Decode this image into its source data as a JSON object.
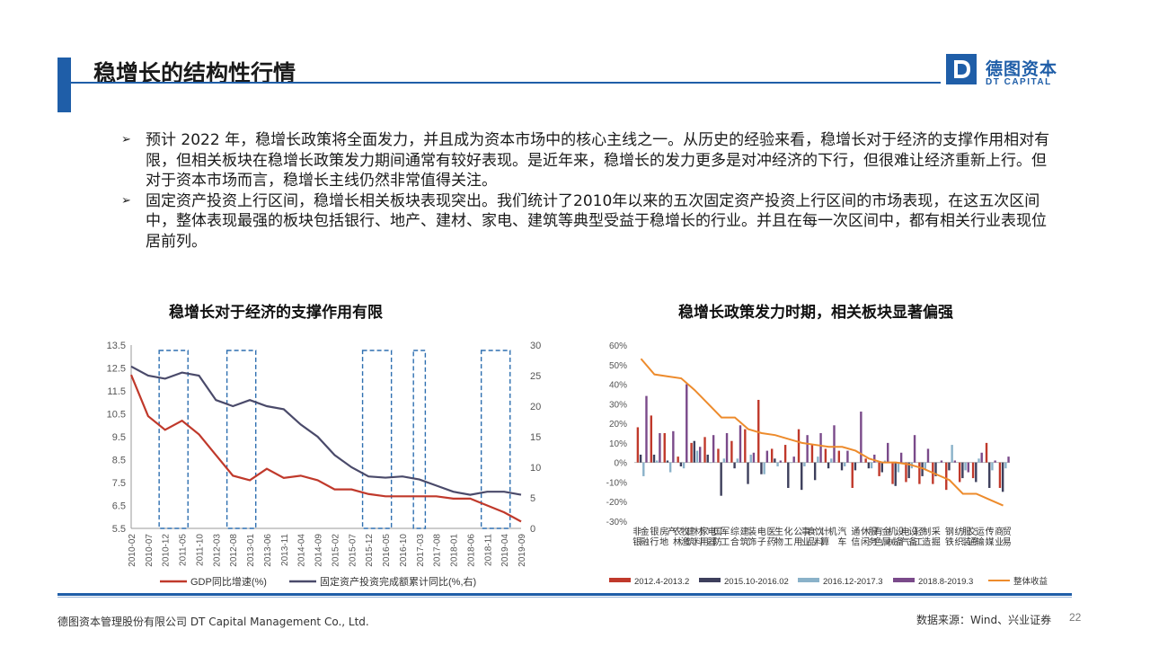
{
  "header": {
    "title": "稳增长的结构性行情",
    "logo_cn": "德图资本",
    "logo_en": "DT CAPITAL",
    "logo_letter": "D"
  },
  "bullets": [
    "预计 2022 年，稳增长政策将全面发力，并且成为资本市场中的核心主线之一。从历史的经验来看，稳增长对于经济的支撑作用相对有限，但相关板块在稳增长政策发力期间通常有较好表现。是近年来，稳增长的发力更多是对冲经济的下行，但很难让经济重新上行。但对于资本市场而言，稳增长主线仍然非常值得关注。",
    "固定资产投资上行区间，稳增长相关板块表现突出。我们统计了2010年以来的五次固定资产投资上行区间的市场表现，在这五次区间中，整体表现最强的板块包括银行、地产、建材、家电、建筑等典型受益于稳增长的行业。并且在每一次区间中，都有相关行业表现位居前列。"
  ],
  "bullet_marker": "➢",
  "footer": {
    "company": "德图资本管理股份有限公司  DT Capital Management Co., Ltd.",
    "source": "数据来源：Wind、兴业证券",
    "page": "22"
  },
  "colors": {
    "brand": "#1f5ea8",
    "gdp": "#c0392b",
    "fai": "#4a4a6a",
    "s1": "#c0392b",
    "s2": "#3d3f5c",
    "s3": "#8ab2c9",
    "s4": "#7a4a8a",
    "s5": "#ed8b2c"
  },
  "chart_data": [
    {
      "type": "line",
      "title": "稳增长对于经济的支撑作用有限",
      "x_labels": [
        "2010-02",
        "2010-07",
        "2010-12",
        "2011-05",
        "2011-10",
        "2012-03",
        "2012-08",
        "2013-01",
        "2013-06",
        "2013-11",
        "2014-04",
        "2014-09",
        "2015-02",
        "2015-07",
        "2015-12",
        "2016-05",
        "2016-10",
        "2017-03",
        "2017-08",
        "2018-01",
        "2018-06",
        "2018-11",
        "2019-04",
        "2019-09"
      ],
      "y_left_ticks": [
        "13.5",
        "12.5",
        "11.5",
        "10.5",
        "9.5",
        "8.5",
        "7.5",
        "6.5",
        "5.5"
      ],
      "y_left_range": [
        5.5,
        13.5
      ],
      "y_right_ticks": [
        "30",
        "25",
        "20",
        "15",
        "10",
        "5",
        "0"
      ],
      "y_right_range": [
        0,
        30
      ],
      "series": [
        {
          "name": "GDP同比增速(%)",
          "axis": "left",
          "values": [
            12.2,
            10.4,
            9.8,
            10.2,
            9.6,
            8.7,
            7.8,
            7.6,
            8.1,
            7.7,
            7.8,
            7.6,
            7.2,
            7.2,
            7.0,
            6.9,
            6.9,
            6.9,
            6.9,
            6.8,
            6.8,
            6.5,
            6.2,
            5.8
          ]
        },
        {
          "name": "固定资产投资完成额累计同比(%,右)",
          "axis": "right",
          "values": [
            26.5,
            25,
            24.5,
            25.5,
            25,
            21,
            20,
            21,
            20,
            19.5,
            17,
            15,
            12,
            10,
            8.5,
            8.3,
            8.5,
            8,
            7,
            6,
            5.5,
            6,
            6,
            5.5
          ]
        }
      ],
      "highlight_ranges": [
        [
          2,
          3
        ],
        [
          6,
          7
        ],
        [
          14,
          15
        ],
        [
          17,
          17
        ],
        [
          21,
          22
        ]
      ]
    },
    {
      "type": "bar",
      "title": "稳增长政策发力时期，相关板块显著偏强",
      "categories": [
        "非银金融",
        "银行",
        "房地产",
        "农林牧渔",
        "建筑材料",
        "家用电器",
        "国防军工",
        "综合",
        "建筑装饰",
        "电子",
        "医药生物",
        "化工",
        "公用事业",
        "食品饮料",
        "计算机",
        "汽车",
        "通信",
        "休闲服务",
        "有色金属",
        "机械设备",
        "电气设备",
        "轻工制造",
        "采掘",
        "钢铁",
        "纺织服装",
        "交通运输",
        "传媒",
        "商业贸易"
      ],
      "y_ticks": [
        "60%",
        "50%",
        "40%",
        "30%",
        "20%",
        "10%",
        "0%",
        "-10%",
        "-20%",
        "-30%"
      ],
      "y_range": [
        -30,
        60
      ],
      "series": [
        {
          "name": "2012.4-2013.2",
          "values": [
            18,
            24,
            15,
            3,
            10,
            13,
            7,
            11,
            17,
            32,
            7,
            9,
            17,
            9,
            7,
            6,
            -13,
            2,
            -7,
            -11,
            -10,
            -11,
            -11,
            -14,
            -10,
            -8,
            10,
            -13
          ]
        },
        {
          "name": "2015.10-2016.02",
          "values": [
            4,
            4,
            1,
            -2,
            11,
            4,
            -17,
            -3,
            -11,
            -6,
            2,
            -13,
            -14,
            -9,
            -3,
            -4,
            -4,
            -3,
            -5,
            -12,
            -8,
            -7,
            -7,
            -4,
            -8,
            -10,
            -13,
            -15
          ]
        },
        {
          "name": "2016.12-2017.3",
          "values": [
            -7,
            1,
            -5,
            -3,
            6,
            0,
            2,
            2,
            4,
            -6,
            -2,
            0,
            -2,
            3,
            2,
            -2,
            0,
            -3,
            1,
            -5,
            -3,
            -4,
            0,
            9,
            -4,
            2,
            -4,
            -3
          ]
        },
        {
          "name": "2018.8-2019.3",
          "values": [
            34,
            15,
            16,
            40,
            8,
            14,
            15,
            19,
            5,
            6,
            1,
            3,
            14,
            15,
            19,
            6,
            26,
            4,
            10,
            5,
            14,
            7,
            1,
            1,
            -5,
            5,
            1,
            3
          ]
        }
      ],
      "line_series": {
        "name": "整体收益",
        "values": [
          53,
          45,
          44,
          43,
          37,
          30,
          23,
          23,
          17,
          15,
          14,
          12,
          10,
          9,
          8,
          8,
          6,
          2,
          0,
          0,
          -1,
          -3,
          -6,
          -9,
          -16,
          -16,
          -19,
          -22
        ]
      }
    }
  ]
}
